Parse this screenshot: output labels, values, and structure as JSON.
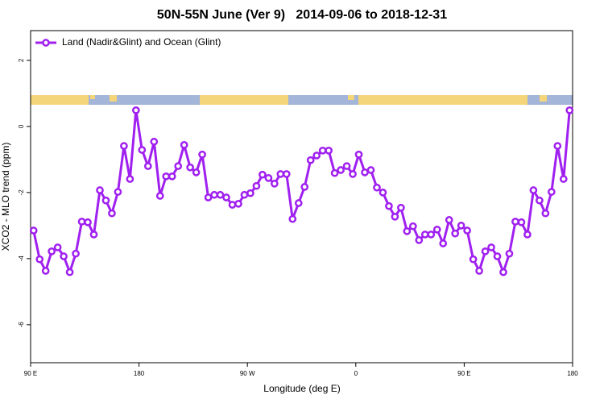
{
  "chart_data": {
    "type": "line",
    "title": "50N-55N June (Ver 9)   2014-09-06 to 2018-12-31",
    "xlabel": "Longitude (deg E)",
    "ylabel": "XCO2 - MLO trend (ppm)",
    "xlim": [
      90,
      540
    ],
    "xticks": [
      {
        "value": 90,
        "label": "90 E"
      },
      {
        "value": 180,
        "label": "180"
      },
      {
        "value": 270,
        "label": "90 W"
      },
      {
        "value": 360,
        "label": "0"
      },
      {
        "value": 450,
        "label": "90 E"
      },
      {
        "value": 540,
        "label": "180"
      }
    ],
    "ylim": [
      -7.15,
      2.9
    ],
    "yticks": [
      2,
      0,
      -2,
      -4,
      -6
    ],
    "legend": "top-left",
    "x": [
      92.5,
      97.5,
      102.5,
      107.5,
      112.5,
      117.5,
      122.5,
      127.5,
      132.5,
      137.5,
      142.5,
      147.5,
      152.5,
      157.5,
      162.5,
      167.5,
      172.5,
      177.5,
      182.5,
      187.5,
      192.5,
      197.5,
      202.5,
      207.5,
      212.5,
      217.5,
      222.5,
      227.5,
      232.5,
      237.5,
      242.5,
      247.5,
      252.5,
      257.5,
      262.5,
      267.5,
      272.5,
      277.5,
      282.5,
      287.5,
      292.5,
      297.5,
      302.5,
      307.5,
      312.5,
      317.5,
      322.5,
      327.5,
      332.5,
      337.5,
      342.5,
      347.5,
      352.5,
      357.5,
      362.5,
      367.5,
      372.5,
      377.5,
      382.5,
      387.5,
      392.5,
      397.5,
      402.5,
      407.5,
      412.5,
      417.5,
      422.5,
      427.5,
      432.5,
      437.5,
      442.5,
      447.5,
      452.5,
      457.5,
      462.5,
      467.5,
      472.5,
      477.5,
      482.5,
      487.5,
      492.5,
      497.5,
      502.5,
      507.5,
      512.5,
      517.5,
      522.5,
      527.5,
      532.5,
      537.5
    ],
    "series": [
      {
        "name": "Land (Nadir&Glint) and Ocean (Glint)",
        "color": "#a020f0",
        "values": [
          -3.15,
          -4.02,
          -4.37,
          -3.78,
          -3.66,
          -3.93,
          -4.41,
          -3.85,
          -2.88,
          -2.9,
          -3.27,
          -1.93,
          -2.24,
          -2.63,
          -1.98,
          -0.59,
          -1.59,
          0.49,
          -0.71,
          -1.2,
          -0.46,
          -2.1,
          -1.51,
          -1.51,
          -1.2,
          -0.56,
          -1.24,
          -1.39,
          -0.85,
          -2.15,
          -2.07,
          -2.07,
          -2.15,
          -2.37,
          -2.34,
          -2.07,
          -2.02,
          -1.8,
          -1.46,
          -1.56,
          -1.73,
          -1.44,
          -1.44,
          -2.8,
          -2.32,
          -1.83,
          -1.02,
          -0.88,
          -0.73,
          -0.73,
          -1.41,
          -1.32,
          -1.2,
          -1.44,
          -0.85,
          -1.39,
          -1.32,
          -1.85,
          -2.0,
          -2.41,
          -2.73,
          -2.46,
          -3.17,
          -3.02,
          -3.44,
          -3.27,
          -3.27,
          -3.12,
          -3.54,
          -2.83,
          -3.24,
          -3.0,
          -3.15,
          -4.02,
          -4.37,
          -3.78,
          -3.66,
          -3.93,
          -4.41,
          -3.85,
          -2.88,
          -2.9,
          -3.27,
          -1.93,
          -2.24,
          -2.63,
          -1.98,
          -0.59,
          -1.59,
          0.49
        ]
      }
    ]
  }
}
